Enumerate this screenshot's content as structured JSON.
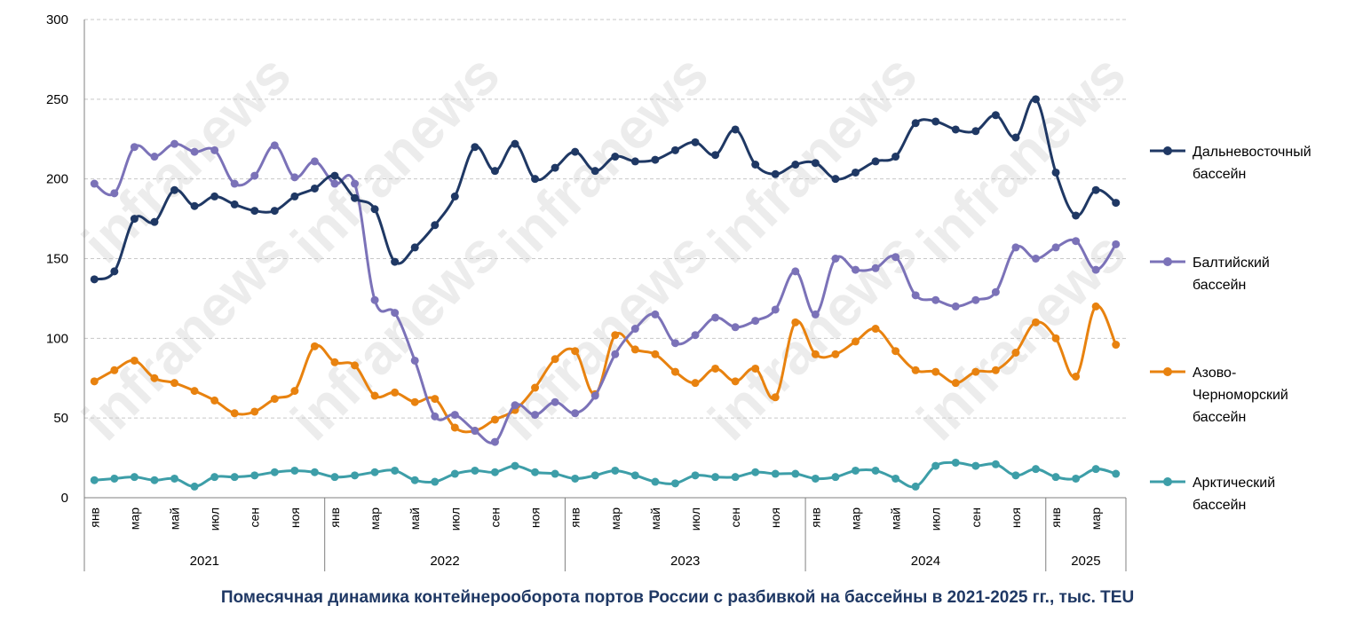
{
  "chart_data": {
    "type": "line",
    "title": "Помесячная динамика контейнерооборота портов России с разбивкой на бассейны в 2021-2025 гг., тыс. TEU",
    "xlabel": "",
    "ylabel": "",
    "ylim": [
      0,
      300
    ],
    "yticks": [
      0,
      50,
      100,
      150,
      200,
      250,
      300
    ],
    "grid": true,
    "legend_position": "right",
    "watermark": "infranews",
    "month_tick_labels": [
      "янв",
      "мар",
      "май",
      "июл",
      "сен",
      "ноя"
    ],
    "years": [
      {
        "label": "2021",
        "months": 12
      },
      {
        "label": "2022",
        "months": 12
      },
      {
        "label": "2023",
        "months": 12
      },
      {
        "label": "2024",
        "months": 12
      },
      {
        "label": "2025",
        "months": 4
      }
    ],
    "series": [
      {
        "name": "Дальневосточный бассейн",
        "name_lines": [
          "Дальневосточный",
          "бассейн"
        ],
        "color": "#1f3864",
        "values": [
          137,
          142,
          175,
          173,
          193,
          183,
          189,
          184,
          180,
          180,
          189,
          194,
          202,
          188,
          181,
          148,
          157,
          171,
          189,
          220,
          205,
          222,
          200,
          207,
          217,
          205,
          214,
          211,
          212,
          218,
          223,
          215,
          231,
          209,
          203,
          209,
          210,
          200,
          204,
          211,
          214,
          235,
          236,
          231,
          230,
          240,
          226,
          250,
          204,
          177,
          193,
          185
        ]
      },
      {
        "name": "Балтийский бассейн",
        "name_lines": [
          "Балтийский",
          "бассейн"
        ],
        "color": "#7b72b8",
        "values": [
          197,
          191,
          220,
          214,
          222,
          217,
          218,
          197,
          202,
          221,
          201,
          211,
          197,
          197,
          124,
          116,
          86,
          51,
          52,
          42,
          35,
          58,
          52,
          60,
          53,
          64,
          90,
          106,
          115,
          97,
          102,
          113,
          107,
          111,
          118,
          142,
          115,
          150,
          143,
          144,
          151,
          127,
          124,
          120,
          124,
          129,
          157,
          150,
          157,
          161,
          143,
          159
        ]
      },
      {
        "name": "Азово-Черноморский бассейн",
        "name_lines": [
          "Азово-",
          "Черноморский",
          "бассейн"
        ],
        "color": "#e8820f",
        "values": [
          73,
          80,
          86,
          75,
          72,
          67,
          61,
          53,
          54,
          62,
          67,
          95,
          85,
          83,
          64,
          66,
          60,
          62,
          44,
          42,
          49,
          55,
          69,
          87,
          92,
          65,
          102,
          93,
          90,
          79,
          72,
          81,
          73,
          81,
          63,
          110,
          90,
          90,
          98,
          106,
          92,
          80,
          79,
          72,
          79,
          80,
          91,
          110,
          100,
          76,
          120,
          96
        ]
      },
      {
        "name": "Арктический бассейн",
        "name_lines": [
          "Арктический",
          "бассейн"
        ],
        "color": "#3d9ea8",
        "values": [
          11,
          12,
          13,
          11,
          12,
          7,
          13,
          13,
          14,
          16,
          17,
          16,
          13,
          14,
          16,
          17,
          11,
          10,
          15,
          17,
          16,
          20,
          16,
          15,
          12,
          14,
          17,
          14,
          10,
          9,
          14,
          13,
          13,
          16,
          15,
          15,
          12,
          13,
          17,
          17,
          12,
          7,
          20,
          22,
          20,
          21,
          14,
          18,
          13,
          12,
          18,
          15
        ]
      }
    ]
  }
}
